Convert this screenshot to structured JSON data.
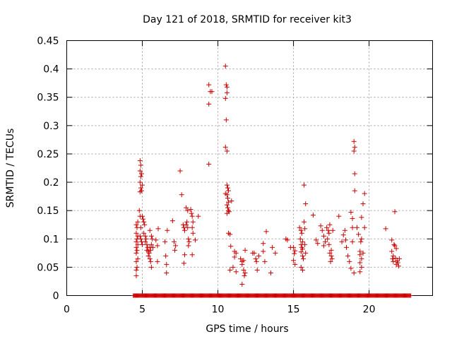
{
  "chart_data": {
    "type": "scatter",
    "title": "Day 121 of 2018, SRMTID for receiver kit3",
    "xlabel": "GPS time / hours",
    "ylabel": "SRMTID / TECUs",
    "xlim": [
      0,
      24.2
    ],
    "ylim": [
      0,
      0.45
    ],
    "x_ticks": [
      0,
      5,
      10,
      15,
      20
    ],
    "x_tick_labels": [
      "0",
      "5",
      "10",
      "15",
      "20"
    ],
    "y_ticks": [
      0,
      0.05,
      0.1,
      0.15,
      0.2,
      0.25,
      0.3,
      0.35,
      0.4,
      0.45
    ],
    "y_tick_labels": [
      "0",
      "0.05",
      "0.1",
      "0.15",
      "0.2",
      "0.25",
      "0.3",
      "0.35",
      "0.4",
      "0.45"
    ],
    "grid": true,
    "marker": "+",
    "marker_color": "#cc0000",
    "baseline_zero_ranges": [
      [
        4.4,
        22.8
      ]
    ],
    "series": [
      {
        "name": "SRMTID",
        "points": [
          [
            4.6,
            0.035
          ],
          [
            4.6,
            0.045
          ],
          [
            4.65,
            0.05
          ],
          [
            4.6,
            0.06
          ],
          [
            4.7,
            0.065
          ],
          [
            4.6,
            0.075
          ],
          [
            4.65,
            0.08
          ],
          [
            4.6,
            0.085
          ],
          [
            4.7,
            0.09
          ],
          [
            4.6,
            0.095
          ],
          [
            4.65,
            0.1
          ],
          [
            4.7,
            0.105
          ],
          [
            4.6,
            0.11
          ],
          [
            4.65,
            0.12
          ],
          [
            4.6,
            0.125
          ],
          [
            4.7,
            0.13
          ],
          [
            4.8,
            0.15
          ],
          [
            4.85,
            0.14
          ],
          [
            4.9,
            0.12
          ],
          [
            4.85,
            0.105
          ],
          [
            4.9,
            0.1
          ],
          [
            4.95,
            0.095
          ],
          [
            5.0,
            0.09
          ],
          [
            4.85,
            0.238
          ],
          [
            4.9,
            0.23
          ],
          [
            4.85,
            0.22
          ],
          [
            4.95,
            0.215
          ],
          [
            4.9,
            0.21
          ],
          [
            4.85,
            0.2
          ],
          [
            5.0,
            0.195
          ],
          [
            4.9,
            0.19
          ],
          [
            4.95,
            0.185
          ],
          [
            4.85,
            0.183
          ],
          [
            5.0,
            0.14
          ],
          [
            5.05,
            0.135
          ],
          [
            5.1,
            0.13
          ],
          [
            5.15,
            0.125
          ],
          [
            5.1,
            0.11
          ],
          [
            5.2,
            0.105
          ],
          [
            5.25,
            0.1
          ],
          [
            5.2,
            0.095
          ],
          [
            5.3,
            0.09
          ],
          [
            5.35,
            0.085
          ],
          [
            5.3,
            0.08
          ],
          [
            5.4,
            0.078
          ],
          [
            5.45,
            0.075
          ],
          [
            5.5,
            0.085
          ],
          [
            5.55,
            0.08
          ],
          [
            5.6,
            0.09
          ],
          [
            5.4,
            0.07
          ],
          [
            5.5,
            0.065
          ],
          [
            5.5,
            0.115
          ],
          [
            5.6,
            0.105
          ],
          [
            5.65,
            0.1
          ],
          [
            5.55,
            0.06
          ],
          [
            5.6,
            0.05
          ],
          [
            5.7,
            0.085
          ],
          [
            5.9,
            0.098
          ],
          [
            6.0,
            0.088
          ],
          [
            6.0,
            0.06
          ],
          [
            6.05,
            0.118
          ],
          [
            6.5,
            0.095
          ],
          [
            6.55,
            0.07
          ],
          [
            6.6,
            0.055
          ],
          [
            6.6,
            0.04
          ],
          [
            6.65,
            0.115
          ],
          [
            7.0,
            0.132
          ],
          [
            7.1,
            0.095
          ],
          [
            7.15,
            0.08
          ],
          [
            7.2,
            0.088
          ],
          [
            7.5,
            0.22
          ],
          [
            7.6,
            0.178
          ],
          [
            7.7,
            0.125
          ],
          [
            7.75,
            0.12
          ],
          [
            7.8,
            0.115
          ],
          [
            7.8,
            0.072
          ],
          [
            7.75,
            0.057
          ],
          [
            7.9,
            0.155
          ],
          [
            8.0,
            0.15
          ],
          [
            7.95,
            0.13
          ],
          [
            7.9,
            0.125
          ],
          [
            8.0,
            0.12
          ],
          [
            8.05,
            0.1
          ],
          [
            8.1,
            0.095
          ],
          [
            8.05,
            0.088
          ],
          [
            8.2,
            0.152
          ],
          [
            8.25,
            0.145
          ],
          [
            8.3,
            0.14
          ],
          [
            8.35,
            0.13
          ],
          [
            8.3,
            0.12
          ],
          [
            8.35,
            0.11
          ],
          [
            8.3,
            0.072
          ],
          [
            8.5,
            0.098
          ],
          [
            8.7,
            0.14
          ],
          [
            9.4,
            0.372
          ],
          [
            9.5,
            0.36
          ],
          [
            9.4,
            0.338
          ],
          [
            9.4,
            0.232
          ],
          [
            9.6,
            0.36
          ],
          [
            10.5,
            0.405
          ],
          [
            10.55,
            0.372
          ],
          [
            10.6,
            0.368
          ],
          [
            10.6,
            0.358
          ],
          [
            10.5,
            0.348
          ],
          [
            10.55,
            0.31
          ],
          [
            10.5,
            0.262
          ],
          [
            10.6,
            0.255
          ],
          [
            10.6,
            0.195
          ],
          [
            10.65,
            0.19
          ],
          [
            10.7,
            0.185
          ],
          [
            10.5,
            0.18
          ],
          [
            10.6,
            0.178
          ],
          [
            10.65,
            0.172
          ],
          [
            10.7,
            0.165
          ],
          [
            10.6,
            0.16
          ],
          [
            10.65,
            0.155
          ],
          [
            10.7,
            0.15
          ],
          [
            10.75,
            0.148
          ],
          [
            10.6,
            0.145
          ],
          [
            10.7,
            0.11
          ],
          [
            10.8,
            0.108
          ],
          [
            10.9,
            0.167
          ],
          [
            10.85,
            0.087
          ],
          [
            10.8,
            0.045
          ],
          [
            11.0,
            0.05
          ],
          [
            11.1,
            0.078
          ],
          [
            11.2,
            0.075
          ],
          [
            11.1,
            0.068
          ],
          [
            11.2,
            0.042
          ],
          [
            11.5,
            0.065
          ],
          [
            11.6,
            0.06
          ],
          [
            11.7,
            0.062
          ],
          [
            11.6,
            0.055
          ],
          [
            11.7,
            0.045
          ],
          [
            11.8,
            0.04
          ],
          [
            11.75,
            0.035
          ],
          [
            11.6,
            0.02
          ],
          [
            11.8,
            0.08
          ],
          [
            12.3,
            0.075
          ],
          [
            12.4,
            0.075
          ],
          [
            12.5,
            0.065
          ],
          [
            12.55,
            0.06
          ],
          [
            12.6,
            0.045
          ],
          [
            12.7,
            0.07
          ],
          [
            13.0,
            0.092
          ],
          [
            13.0,
            0.078
          ],
          [
            13.1,
            0.06
          ],
          [
            13.2,
            0.113
          ],
          [
            13.5,
            0.04
          ],
          [
            13.6,
            0.085
          ],
          [
            13.8,
            0.075
          ],
          [
            14.5,
            0.1
          ],
          [
            14.6,
            0.098
          ],
          [
            14.8,
            0.085
          ],
          [
            15.0,
            0.085
          ],
          [
            15.1,
            0.079
          ],
          [
            15.05,
            0.074
          ],
          [
            15.0,
            0.062
          ],
          [
            15.1,
            0.055
          ],
          [
            15.4,
            0.12
          ],
          [
            15.5,
            0.115
          ],
          [
            15.55,
            0.11
          ],
          [
            15.45,
            0.1
          ],
          [
            15.6,
            0.095
          ],
          [
            15.5,
            0.09
          ],
          [
            15.55,
            0.085
          ],
          [
            15.6,
            0.082
          ],
          [
            15.5,
            0.077
          ],
          [
            15.6,
            0.07
          ],
          [
            15.65,
            0.065
          ],
          [
            15.5,
            0.05
          ],
          [
            15.6,
            0.045
          ],
          [
            15.7,
            0.195
          ],
          [
            15.8,
            0.162
          ],
          [
            15.7,
            0.13
          ],
          [
            15.75,
            0.118
          ],
          [
            15.8,
            0.075
          ],
          [
            15.75,
            0.09
          ],
          [
            16.3,
            0.142
          ],
          [
            16.5,
            0.098
          ],
          [
            16.6,
            0.092
          ],
          [
            16.8,
            0.123
          ],
          [
            16.9,
            0.115
          ],
          [
            17.0,
            0.105
          ],
          [
            17.1,
            0.095
          ],
          [
            17.0,
            0.088
          ],
          [
            17.2,
            0.12
          ],
          [
            17.3,
            0.115
          ],
          [
            17.35,
            0.11
          ],
          [
            17.4,
            0.125
          ],
          [
            17.25,
            0.1
          ],
          [
            17.35,
            0.09
          ],
          [
            17.5,
            0.08
          ],
          [
            17.4,
            0.075
          ],
          [
            17.5,
            0.07
          ],
          [
            17.55,
            0.065
          ],
          [
            17.45,
            0.06
          ],
          [
            17.6,
            0.115
          ],
          [
            18.0,
            0.14
          ],
          [
            18.2,
            0.095
          ],
          [
            18.3,
            0.107
          ],
          [
            18.4,
            0.115
          ],
          [
            18.45,
            0.098
          ],
          [
            18.5,
            0.085
          ],
          [
            18.6,
            0.07
          ],
          [
            18.7,
            0.06
          ],
          [
            18.8,
            0.048
          ],
          [
            18.9,
            0.095
          ],
          [
            18.8,
            0.147
          ],
          [
            18.9,
            0.12
          ],
          [
            18.9,
            0.136
          ],
          [
            19.0,
            0.04
          ],
          [
            19.05,
            0.185
          ],
          [
            19.0,
            0.272
          ],
          [
            19.05,
            0.262
          ],
          [
            19.0,
            0.255
          ],
          [
            19.05,
            0.215
          ],
          [
            19.2,
            0.12
          ],
          [
            19.3,
            0.108
          ],
          [
            19.4,
            0.078
          ],
          [
            19.4,
            0.072
          ],
          [
            19.5,
            0.065
          ],
          [
            19.4,
            0.058
          ],
          [
            19.5,
            0.05
          ],
          [
            19.4,
            0.042
          ],
          [
            19.5,
            0.1
          ],
          [
            19.45,
            0.095
          ],
          [
            19.6,
            0.075
          ],
          [
            19.5,
            0.138
          ],
          [
            19.6,
            0.162
          ],
          [
            19.7,
            0.18
          ],
          [
            19.7,
            0.12
          ],
          [
            21.1,
            0.118
          ],
          [
            21.5,
            0.078
          ],
          [
            21.6,
            0.07
          ],
          [
            21.55,
            0.065
          ],
          [
            21.6,
            0.06
          ],
          [
            21.65,
            0.09
          ],
          [
            21.5,
            0.098
          ],
          [
            21.7,
            0.148
          ],
          [
            21.7,
            0.088
          ],
          [
            21.8,
            0.083
          ],
          [
            21.75,
            0.066
          ],
          [
            21.85,
            0.061
          ],
          [
            21.8,
            0.055
          ],
          [
            21.9,
            0.058
          ],
          [
            21.95,
            0.052
          ],
          [
            22.0,
            0.065
          ]
        ]
      }
    ]
  }
}
